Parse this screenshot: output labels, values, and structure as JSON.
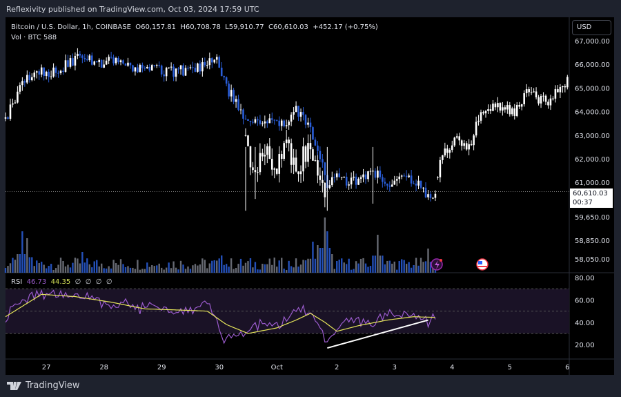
{
  "publisher": "Reflexivity published on TradingView.com, Oct 03, 2024 17:59 UTC",
  "legend": {
    "symbol": "Bitcoin / U.S. Dollar, 1h, COINBASE",
    "open": "O60,157.81",
    "high": "H60,708.78",
    "low": "L59,910.77",
    "close": "C60,610.03",
    "change": "+452.17 (+0.75%)",
    "volume": "Vol · BTC  588"
  },
  "currency": "USD",
  "last_price": {
    "price": "60,610.03",
    "countdown": "00:37"
  },
  "rsi_legend": {
    "name": "RSI",
    "rsi": "46.73",
    "ma": "44.35",
    "extras": [
      "∅",
      "∅",
      "∅",
      "∅"
    ]
  },
  "colors": {
    "up": "#ffffff",
    "down": "#2a5ed9",
    "rsi": "#9c5ccf",
    "rsi_ma": "#e6e65a",
    "vol_gray": "#787b86"
  },
  "brand": "TradingView",
  "chart_data": {
    "type": "candlestick",
    "symbol": "BTCUSD 1h",
    "price_axis": [
      {
        "v": 67000,
        "t": "67,000.00"
      },
      {
        "v": 66000,
        "t": "66,000.00"
      },
      {
        "v": 65000,
        "t": "65,000.00"
      },
      {
        "v": 64000,
        "t": "64,000.00"
      },
      {
        "v": 63000,
        "t": "63,000.00"
      },
      {
        "v": 62000,
        "t": "62,000.00"
      },
      {
        "v": 61000,
        "t": "61,000.00"
      },
      {
        "v": 59650,
        "t": "59,650.00"
      },
      {
        "v": 58850,
        "t": "58,850.00"
      },
      {
        "v": 58050,
        "t": "58,050.00"
      }
    ],
    "time_axis": [
      {
        "h": 17,
        "t": "27"
      },
      {
        "h": 41,
        "t": "28"
      },
      {
        "h": 65,
        "t": "29"
      },
      {
        "h": 89,
        "t": "30"
      },
      {
        "h": 113,
        "t": "Oct"
      },
      {
        "h": 138,
        "t": "2"
      },
      {
        "h": 162,
        "t": "3"
      },
      {
        "h": 186,
        "t": "4"
      },
      {
        "h": 210,
        "t": "5"
      },
      {
        "h": 234,
        "t": "6"
      }
    ],
    "price_path": [
      [
        0,
        63700
      ],
      [
        3,
        64300
      ],
      [
        9,
        65500
      ],
      [
        18,
        65700
      ],
      [
        26,
        66000
      ],
      [
        32,
        66300
      ],
      [
        41,
        66000
      ],
      [
        45,
        66200
      ],
      [
        55,
        65800
      ],
      [
        72,
        65700
      ],
      [
        84,
        66000
      ],
      [
        88,
        66200
      ],
      [
        91,
        65200
      ],
      [
        95,
        64500
      ],
      [
        100,
        63800
      ],
      [
        104,
        63500
      ],
      [
        110,
        63800
      ],
      [
        116,
        63500
      ],
      [
        121,
        64000
      ],
      [
        126,
        63500
      ],
      [
        130,
        62300
      ],
      [
        134,
        61000
      ],
      [
        139,
        61200
      ],
      [
        144,
        61000
      ],
      [
        153,
        61500
      ],
      [
        159,
        60800
      ],
      [
        167,
        61200
      ],
      [
        173,
        60800
      ],
      [
        177,
        60200
      ],
      [
        179,
        60610
      ]
    ],
    "overlay_path": [
      [
        100,
        63000
      ],
      [
        104,
        61000
      ],
      [
        107,
        62500
      ],
      [
        113,
        61500
      ],
      [
        117,
        62700
      ],
      [
        121,
        61500
      ],
      [
        126,
        62500
      ],
      [
        133,
        60800
      ]
    ],
    "projection_path": [
      [
        179,
        60600
      ],
      [
        181,
        61800
      ],
      [
        186,
        62800
      ],
      [
        193,
        62500
      ],
      [
        197,
        63800
      ],
      [
        205,
        64200
      ],
      [
        212,
        64000
      ],
      [
        217,
        64800
      ],
      [
        225,
        64400
      ],
      [
        230,
        64800
      ],
      [
        234,
        65300
      ]
    ],
    "volume_spikes": [
      [
        7,
        60
      ],
      [
        9,
        50
      ],
      [
        32,
        30
      ],
      [
        90,
        25
      ],
      [
        128,
        45
      ],
      [
        130,
        40
      ],
      [
        133,
        80
      ],
      [
        134,
        60
      ],
      [
        155,
        55
      ],
      [
        176,
        35
      ]
    ],
    "rsi_axis": [
      {
        "v": 80,
        "t": "80.00"
      },
      {
        "v": 60,
        "t": "60.00"
      },
      {
        "v": 40,
        "t": "40.00"
      },
      {
        "v": 20,
        "t": "20.00"
      }
    ],
    "rsi_bands": [
      70,
      50,
      30
    ],
    "rsi_path": [
      [
        0,
        45
      ],
      [
        9,
        62
      ],
      [
        18,
        66
      ],
      [
        26,
        64
      ],
      [
        35,
        62
      ],
      [
        44,
        55
      ],
      [
        49,
        58
      ],
      [
        55,
        52
      ],
      [
        64,
        55
      ],
      [
        72,
        50
      ],
      [
        84,
        55
      ],
      [
        87,
        45
      ],
      [
        91,
        25
      ],
      [
        97,
        32
      ],
      [
        101,
        30
      ],
      [
        107,
        40
      ],
      [
        113,
        35
      ],
      [
        118,
        45
      ],
      [
        124,
        52
      ],
      [
        130,
        38
      ],
      [
        134,
        18
      ],
      [
        139,
        35
      ],
      [
        144,
        42
      ],
      [
        153,
        40
      ],
      [
        159,
        46
      ],
      [
        167,
        50
      ],
      [
        173,
        42
      ],
      [
        177,
        40
      ],
      [
        179,
        46.73
      ]
    ],
    "rsi_ma_path": [
      [
        0,
        45
      ],
      [
        15,
        65
      ],
      [
        29,
        63
      ],
      [
        44,
        58
      ],
      [
        58,
        52
      ],
      [
        72,
        51
      ],
      [
        84,
        50
      ],
      [
        92,
        38
      ],
      [
        101,
        30
      ],
      [
        113,
        35
      ],
      [
        121,
        42
      ],
      [
        127,
        48
      ],
      [
        133,
        40
      ],
      [
        138,
        32
      ],
      [
        147,
        37
      ],
      [
        159,
        42
      ],
      [
        170,
        45
      ],
      [
        179,
        44.35
      ]
    ],
    "trendline": [
      [
        134,
        17
      ],
      [
        176,
        42
      ]
    ]
  }
}
